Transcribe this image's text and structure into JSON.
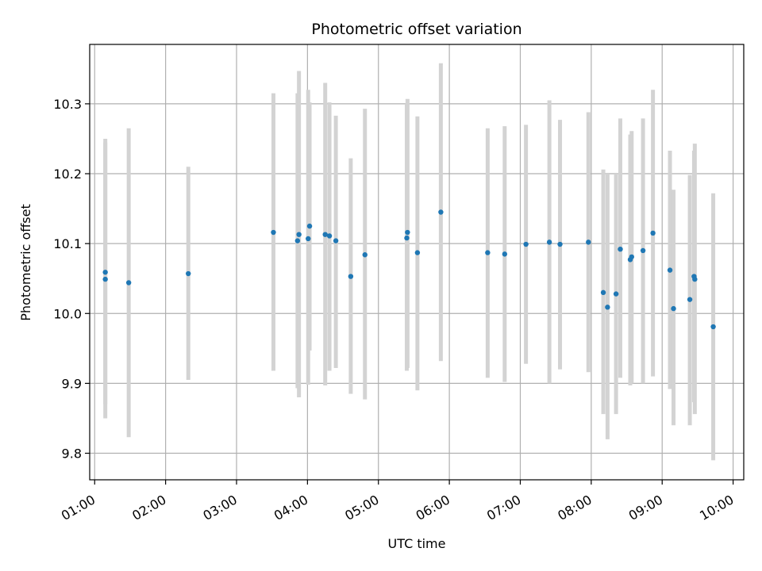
{
  "chart_data": {
    "type": "scatter",
    "title": "Photometric offset variation",
    "xlabel": "UTC time",
    "ylabel": "Photometric offset",
    "x_unit": "hours UTC",
    "xlim": [
      0.93,
      10.15
    ],
    "ylim": [
      9.762,
      10.385
    ],
    "x_ticks": [
      {
        "value": 1,
        "label": "01:00"
      },
      {
        "value": 2,
        "label": "02:00"
      },
      {
        "value": 3,
        "label": "03:00"
      },
      {
        "value": 4,
        "label": "04:00"
      },
      {
        "value": 5,
        "label": "05:00"
      },
      {
        "value": 6,
        "label": "06:00"
      },
      {
        "value": 7,
        "label": "07:00"
      },
      {
        "value": 8,
        "label": "08:00"
      },
      {
        "value": 9,
        "label": "09:00"
      },
      {
        "value": 10,
        "label": "10:00"
      }
    ],
    "y_ticks": [
      {
        "value": 9.8,
        "label": "9.8"
      },
      {
        "value": 9.9,
        "label": "9.9"
      },
      {
        "value": 10.0,
        "label": "10.0"
      },
      {
        "value": 10.1,
        "label": "10.1"
      },
      {
        "value": 10.2,
        "label": "10.2"
      },
      {
        "value": 10.3,
        "label": "10.3"
      }
    ],
    "grid": true,
    "marker_color": "#1f77b4",
    "errorbar_color": "#d3d3d3",
    "points": [
      {
        "x": 1.15,
        "y": 10.059,
        "lo": 9.87,
        "hi": 10.25
      },
      {
        "x": 1.15,
        "y": 10.049,
        "lo": 9.85,
        "hi": 10.245
      },
      {
        "x": 1.48,
        "y": 10.044,
        "lo": 9.823,
        "hi": 10.265
      },
      {
        "x": 2.32,
        "y": 10.057,
        "lo": 9.905,
        "hi": 10.21
      },
      {
        "x": 3.52,
        "y": 10.116,
        "lo": 9.918,
        "hi": 10.315
      },
      {
        "x": 3.86,
        "y": 10.104,
        "lo": 9.893,
        "hi": 10.315
      },
      {
        "x": 3.88,
        "y": 10.113,
        "lo": 9.88,
        "hi": 10.347
      },
      {
        "x": 4.01,
        "y": 10.107,
        "lo": 9.898,
        "hi": 10.32
      },
      {
        "x": 4.03,
        "y": 10.125,
        "lo": 9.947,
        "hi": 10.302
      },
      {
        "x": 4.25,
        "y": 10.113,
        "lo": 9.897,
        "hi": 10.33
      },
      {
        "x": 4.31,
        "y": 10.111,
        "lo": 9.918,
        "hi": 10.302
      },
      {
        "x": 4.4,
        "y": 10.104,
        "lo": 9.922,
        "hi": 10.283
      },
      {
        "x": 4.61,
        "y": 10.053,
        "lo": 9.885,
        "hi": 10.222
      },
      {
        "x": 4.81,
        "y": 10.084,
        "lo": 9.877,
        "hi": 10.293
      },
      {
        "x": 5.4,
        "y": 10.108,
        "lo": 9.918,
        "hi": 10.3
      },
      {
        "x": 5.41,
        "y": 10.116,
        "lo": 9.922,
        "hi": 10.307
      },
      {
        "x": 5.55,
        "y": 10.087,
        "lo": 9.89,
        "hi": 10.282
      },
      {
        "x": 5.88,
        "y": 10.145,
        "lo": 9.932,
        "hi": 10.358
      },
      {
        "x": 6.54,
        "y": 10.087,
        "lo": 9.908,
        "hi": 10.265
      },
      {
        "x": 6.78,
        "y": 10.085,
        "lo": 9.902,
        "hi": 10.268
      },
      {
        "x": 7.08,
        "y": 10.099,
        "lo": 9.928,
        "hi": 10.27
      },
      {
        "x": 7.41,
        "y": 10.102,
        "lo": 9.9,
        "hi": 10.305
      },
      {
        "x": 7.56,
        "y": 10.099,
        "lo": 9.92,
        "hi": 10.277
      },
      {
        "x": 7.96,
        "y": 10.102,
        "lo": 9.916,
        "hi": 10.288
      },
      {
        "x": 8.17,
        "y": 10.03,
        "lo": 9.856,
        "hi": 10.206
      },
      {
        "x": 8.23,
        "y": 10.009,
        "lo": 9.82,
        "hi": 10.2
      },
      {
        "x": 8.35,
        "y": 10.028,
        "lo": 9.856,
        "hi": 10.2
      },
      {
        "x": 8.41,
        "y": 10.092,
        "lo": 9.908,
        "hi": 10.279
      },
      {
        "x": 8.55,
        "y": 10.077,
        "lo": 9.897,
        "hi": 10.256
      },
      {
        "x": 8.57,
        "y": 10.081,
        "lo": 9.9,
        "hi": 10.261
      },
      {
        "x": 8.73,
        "y": 10.09,
        "lo": 9.9,
        "hi": 10.279
      },
      {
        "x": 8.87,
        "y": 10.115,
        "lo": 9.91,
        "hi": 10.32
      },
      {
        "x": 9.11,
        "y": 10.062,
        "lo": 9.892,
        "hi": 10.233
      },
      {
        "x": 9.16,
        "y": 10.007,
        "lo": 9.84,
        "hi": 10.177
      },
      {
        "x": 9.39,
        "y": 10.02,
        "lo": 9.84,
        "hi": 10.198
      },
      {
        "x": 9.45,
        "y": 10.053,
        "lo": 9.873,
        "hi": 10.233
      },
      {
        "x": 9.46,
        "y": 10.049,
        "lo": 9.856,
        "hi": 10.243
      },
      {
        "x": 9.72,
        "y": 9.981,
        "lo": 9.79,
        "hi": 10.172
      }
    ]
  }
}
